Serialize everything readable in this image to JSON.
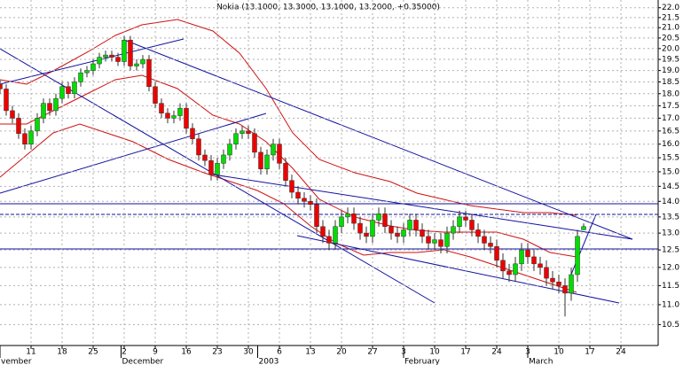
{
  "chart_data": {
    "type": "candlestick",
    "title": "Nokia (13.1000, 13.3000, 13.1000, 13.2000, +0.35000)",
    "log_scale": true,
    "grid": true,
    "up_color": "#00dd00",
    "down_color": "#ee0000",
    "xlim": [
      0,
      106
    ],
    "ylim": [
      10.0,
      22.4
    ],
    "x": [
      0,
      1,
      2,
      3,
      4,
      5,
      6,
      7,
      8,
      9,
      10,
      11,
      12,
      13,
      14,
      15,
      16,
      17,
      18,
      19,
      20,
      21,
      22,
      23,
      24,
      25,
      26,
      27,
      28,
      29,
      30,
      31,
      32,
      33,
      34,
      35,
      36,
      37,
      38,
      39,
      40,
      41,
      42,
      43,
      44,
      45,
      46,
      47,
      48,
      49,
      50,
      51,
      52,
      53,
      54,
      55,
      56,
      57,
      58,
      59,
      60,
      61,
      62,
      63,
      64,
      65,
      66,
      67,
      68,
      69,
      70,
      71,
      72,
      73,
      74,
      75,
      76,
      77,
      78,
      79,
      80,
      81,
      82,
      83,
      84,
      85,
      86,
      87,
      88,
      89,
      90,
      91,
      92,
      93,
      94
    ],
    "open": [
      18.4,
      18.2,
      17.3,
      17.0,
      16.4,
      16.0,
      16.5,
      17.0,
      17.6,
      17.3,
      17.8,
      18.3,
      18.0,
      18.5,
      18.9,
      19.0,
      19.3,
      19.6,
      19.7,
      19.6,
      19.4,
      20.4,
      19.2,
      19.3,
      19.5,
      18.3,
      17.6,
      17.2,
      17.0,
      17.1,
      17.4,
      16.6,
      16.2,
      15.6,
      15.4,
      14.9,
      15.3,
      15.6,
      16.0,
      16.4,
      16.5,
      16.4,
      15.7,
      15.1,
      15.6,
      16.0,
      15.3,
      14.7,
      14.3,
      14.1,
      14.0,
      13.9,
      13.2,
      12.9,
      12.7,
      13.2,
      13.5,
      13.6,
      13.3,
      13.0,
      12.9,
      13.4,
      13.6,
      13.2,
      13.0,
      12.9,
      13.1,
      13.4,
      13.1,
      12.9,
      12.7,
      12.8,
      12.6,
      13.0,
      13.2,
      13.5,
      13.4,
      13.1,
      12.9,
      12.7,
      12.6,
      12.2,
      11.9,
      11.8,
      12.1,
      12.5,
      12.3,
      12.1,
      12.0,
      11.7,
      11.6,
      11.5,
      11.3,
      11.8,
      13.1
    ],
    "high": [
      18.6,
      18.4,
      17.5,
      17.2,
      16.6,
      16.7,
      17.2,
      17.8,
      17.8,
      18.0,
      18.5,
      18.5,
      18.7,
      19.1,
      19.2,
      19.5,
      19.8,
      19.9,
      19.9,
      19.8,
      20.6,
      20.6,
      19.5,
      19.7,
      19.7,
      18.5,
      17.8,
      17.4,
      17.3,
      17.6,
      17.6,
      16.8,
      16.4,
      15.8,
      15.6,
      15.5,
      15.8,
      16.2,
      16.6,
      16.7,
      16.7,
      16.6,
      15.9,
      15.8,
      16.2,
      16.2,
      15.5,
      14.9,
      14.5,
      14.3,
      14.2,
      14.1,
      13.4,
      13.1,
      13.4,
      13.7,
      13.8,
      13.8,
      13.5,
      13.2,
      13.6,
      13.8,
      13.8,
      13.4,
      13.2,
      13.3,
      13.6,
      13.6,
      13.3,
      13.1,
      13.0,
      13.0,
      13.2,
      13.4,
      13.7,
      13.7,
      13.6,
      13.3,
      13.1,
      12.9,
      12.8,
      12.4,
      12.1,
      12.3,
      12.7,
      12.7,
      12.5,
      12.3,
      12.2,
      11.9,
      11.8,
      11.7,
      12.0,
      13.1,
      13.3
    ],
    "low": [
      18.0,
      17.1,
      16.8,
      16.2,
      15.8,
      15.8,
      16.3,
      16.8,
      17.1,
      17.1,
      17.6,
      17.8,
      17.8,
      18.3,
      18.7,
      18.8,
      19.1,
      19.4,
      19.4,
      19.2,
      19.2,
      19.0,
      19.0,
      19.1,
      18.1,
      17.4,
      17.0,
      16.8,
      16.8,
      16.9,
      16.4,
      16.0,
      15.4,
      15.2,
      14.7,
      14.7,
      15.1,
      15.4,
      15.8,
      16.2,
      16.2,
      15.5,
      14.9,
      14.9,
      15.4,
      15.1,
      14.5,
      14.1,
      13.9,
      13.8,
      13.7,
      13.0,
      12.7,
      12.5,
      12.5,
      13.0,
      13.3,
      13.1,
      12.8,
      12.7,
      12.7,
      13.2,
      13.0,
      12.8,
      12.7,
      12.7,
      12.9,
      12.9,
      12.7,
      12.5,
      12.5,
      12.4,
      12.4,
      12.8,
      13.0,
      13.2,
      12.9,
      12.7,
      12.5,
      12.4,
      12.0,
      11.7,
      11.6,
      11.6,
      11.9,
      12.1,
      11.9,
      11.8,
      11.5,
      11.4,
      11.3,
      10.7,
      11.1,
      11.6,
      13.1
    ],
    "close": [
      18.2,
      17.3,
      17.0,
      16.4,
      16.0,
      16.5,
      17.0,
      17.6,
      17.3,
      17.8,
      18.3,
      18.0,
      18.5,
      18.9,
      19.0,
      19.3,
      19.6,
      19.7,
      19.6,
      19.4,
      20.4,
      19.2,
      19.3,
      19.5,
      18.3,
      17.6,
      17.2,
      17.0,
      17.1,
      17.4,
      16.6,
      16.2,
      15.6,
      15.4,
      14.9,
      15.3,
      15.6,
      16.0,
      16.4,
      16.5,
      16.4,
      15.7,
      15.1,
      15.6,
      16.0,
      15.3,
      14.7,
      14.3,
      14.1,
      14.0,
      13.9,
      13.2,
      12.9,
      12.7,
      13.2,
      13.5,
      13.6,
      13.3,
      13.0,
      12.9,
      13.4,
      13.6,
      13.2,
      13.0,
      12.9,
      13.1,
      13.4,
      13.1,
      12.9,
      12.7,
      12.8,
      12.6,
      13.0,
      13.2,
      13.5,
      13.4,
      13.1,
      12.9,
      12.7,
      12.6,
      12.2,
      11.9,
      11.8,
      12.1,
      12.5,
      12.3,
      12.1,
      12.0,
      11.7,
      11.6,
      11.5,
      11.3,
      11.8,
      12.9,
      13.2
    ],
    "xticks": [
      {
        "value": 5,
        "label": "11"
      },
      {
        "value": 10,
        "label": "18"
      },
      {
        "value": 15,
        "label": "25"
      },
      {
        "value": 20,
        "label": "2"
      },
      {
        "value": 25,
        "label": "9"
      },
      {
        "value": 30,
        "label": "16"
      },
      {
        "value": 35,
        "label": "23"
      },
      {
        "value": 40,
        "label": "30"
      },
      {
        "value": 45,
        "label": "6"
      },
      {
        "value": 50,
        "label": "13"
      },
      {
        "value": 55,
        "label": "20"
      },
      {
        "value": 60,
        "label": "27"
      },
      {
        "value": 65,
        "label": "3"
      },
      {
        "value": 70,
        "label": "10"
      },
      {
        "value": 75,
        "label": "17"
      },
      {
        "value": 80,
        "label": "24"
      },
      {
        "value": 85,
        "label": "3"
      },
      {
        "value": 90,
        "label": "10"
      },
      {
        "value": 95,
        "label": "17"
      },
      {
        "value": 100,
        "label": "24"
      }
    ],
    "month_ticks": [
      {
        "value": 0,
        "label": "vember"
      },
      {
        "value": 19.5,
        "label": "December"
      },
      {
        "value": 41.5,
        "label": "2003"
      },
      {
        "value": 65,
        "label": "February"
      },
      {
        "value": 85,
        "label": "March"
      }
    ],
    "yticks": [
      {
        "value": 22,
        "label": "22.0"
      },
      21.5,
      {
        "value": 21,
        "label": "21.0"
      },
      20.5,
      {
        "value": 20,
        "label": "20.0"
      },
      19.5,
      {
        "value": 19,
        "label": "19.0"
      },
      18.5,
      {
        "value": 18,
        "label": "18.0"
      },
      17.5,
      {
        "value": 17,
        "label": "17.0"
      },
      16.5,
      {
        "value": 16,
        "label": "16.0"
      },
      15.5,
      {
        "value": 15,
        "label": "15.0"
      },
      14.5,
      {
        "value": 14,
        "label": "14.0"
      },
      13.5,
      {
        "value": 13,
        "label": "13.0"
      },
      12.5,
      {
        "value": 12,
        "label": "12.0"
      },
      11.5,
      {
        "value": 11,
        "label": "11.0"
      },
      10.5
    ]
  }
}
